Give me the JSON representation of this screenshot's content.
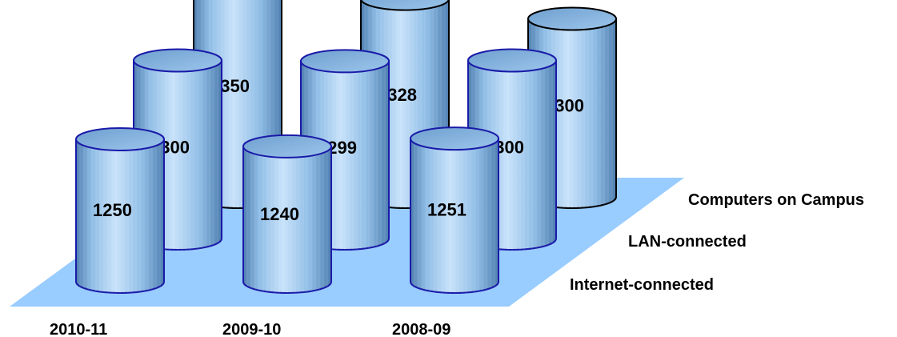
{
  "chart_data": {
    "type": "bar",
    "style": "3d-cylinder",
    "categories": [
      "2010-11",
      "2009-10",
      "2008-09"
    ],
    "series": [
      {
        "name": "Computers on Campus",
        "values": [
          1350,
          1328,
          1300
        ]
      },
      {
        "name": "LAN-connected",
        "values": [
          1300,
          1299,
          1300
        ]
      },
      {
        "name": "Internet-connected",
        "values": [
          1250,
          1240,
          1251
        ]
      }
    ],
    "legend": "right, one label per depth row",
    "grid": false,
    "colors": {
      "floor": "#99ccff",
      "cylinder_light": "#c8e2fa",
      "cylinder_mid": "#8fbde6",
      "cylinder_dark": "#4f7fb0",
      "outline_back": "#000000",
      "outline_front": "#1a1aa8"
    }
  }
}
